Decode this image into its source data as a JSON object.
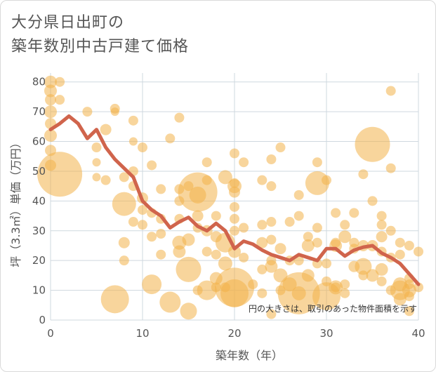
{
  "chart_data": {
    "type": "scatter",
    "title_lines": [
      "大分県日出町の",
      "築年数別中古戸建て価格"
    ],
    "xlabel": "築年数（年）",
    "ylabel": "坪（3.3㎡）単価（万円）",
    "xlim": [
      0,
      40
    ],
    "ylim": [
      0,
      83
    ],
    "xticks": [
      0,
      10,
      20,
      30,
      40
    ],
    "yticks": [
      0,
      10,
      20,
      30,
      40,
      50,
      60,
      70,
      80
    ],
    "note": "円の大きさは、取引のあった物件面積を示す",
    "colors": {
      "bubble": "#f2b24a",
      "line": "#d0644c",
      "grid": "#cfd8df",
      "text": "#555555"
    },
    "average_line": {
      "x": [
        0,
        1,
        2,
        3,
        4,
        5,
        6,
        7,
        8,
        9,
        10,
        11,
        12,
        13,
        14,
        15,
        16,
        17,
        18,
        19,
        20,
        21,
        22,
        23,
        24,
        25,
        26,
        27,
        28,
        29,
        30,
        31,
        32,
        33,
        34,
        35,
        36,
        37,
        38,
        39,
        40
      ],
      "y": [
        64,
        66,
        68.5,
        66,
        61,
        64,
        58,
        54,
        51,
        48,
        40,
        37,
        35,
        31,
        33,
        34.5,
        31.5,
        30,
        32.5,
        30,
        24,
        26.5,
        25.5,
        23.5,
        22,
        21,
        20,
        22,
        21,
        20,
        24,
        24,
        21.5,
        23.5,
        24.5,
        25,
        22.5,
        21,
        19,
        15.5,
        12
      ]
    },
    "points": [
      {
        "x": 0,
        "y": 80,
        "s": 9
      },
      {
        "x": 0,
        "y": 77,
        "s": 9
      },
      {
        "x": 0,
        "y": 74,
        "s": 8
      },
      {
        "x": 0,
        "y": 70,
        "s": 9
      },
      {
        "x": 0,
        "y": 66,
        "s": 8
      },
      {
        "x": 0,
        "y": 62,
        "s": 9
      },
      {
        "x": 0,
        "y": 57,
        "s": 8
      },
      {
        "x": 0,
        "y": 52,
        "s": 8
      },
      {
        "x": 1,
        "y": 80,
        "s": 7
      },
      {
        "x": 1,
        "y": 74,
        "s": 7
      },
      {
        "x": 1,
        "y": 49,
        "s": 32
      },
      {
        "x": 4,
        "y": 70,
        "s": 7
      },
      {
        "x": 5,
        "y": 58,
        "s": 7
      },
      {
        "x": 5,
        "y": 53,
        "s": 6
      },
      {
        "x": 5,
        "y": 48,
        "s": 6
      },
      {
        "x": 6,
        "y": 64,
        "s": 8
      },
      {
        "x": 6,
        "y": 47,
        "s": 7
      },
      {
        "x": 7,
        "y": 71,
        "s": 7
      },
      {
        "x": 7,
        "y": 70,
        "s": 6
      },
      {
        "x": 7,
        "y": 7,
        "s": 20
      },
      {
        "x": 8,
        "y": 48,
        "s": 7
      },
      {
        "x": 8,
        "y": 39,
        "s": 17
      },
      {
        "x": 8,
        "y": 26,
        "s": 8
      },
      {
        "x": 8,
        "y": 20,
        "s": 7
      },
      {
        "x": 9,
        "y": 67,
        "s": 7
      },
      {
        "x": 9,
        "y": 60,
        "s": 6
      },
      {
        "x": 9,
        "y": 50,
        "s": 7
      },
      {
        "x": 9,
        "y": 45,
        "s": 7
      },
      {
        "x": 9,
        "y": 33,
        "s": 7
      },
      {
        "x": 10,
        "y": 58,
        "s": 7
      },
      {
        "x": 10,
        "y": 41,
        "s": 8
      },
      {
        "x": 10,
        "y": 37,
        "s": 7
      },
      {
        "x": 10,
        "y": 32,
        "s": 7
      },
      {
        "x": 11,
        "y": 52,
        "s": 7
      },
      {
        "x": 11,
        "y": 36,
        "s": 7
      },
      {
        "x": 11,
        "y": 28,
        "s": 7
      },
      {
        "x": 11,
        "y": 12,
        "s": 14
      },
      {
        "x": 12,
        "y": 44,
        "s": 7
      },
      {
        "x": 12,
        "y": 34,
        "s": 7
      },
      {
        "x": 12,
        "y": 29,
        "s": 7
      },
      {
        "x": 12,
        "y": 22,
        "s": 7
      },
      {
        "x": 13,
        "y": 61,
        "s": 7
      },
      {
        "x": 13,
        "y": 6,
        "s": 15
      },
      {
        "x": 14,
        "y": 68,
        "s": 7
      },
      {
        "x": 14,
        "y": 44,
        "s": 7
      },
      {
        "x": 14,
        "y": 40,
        "s": 7
      },
      {
        "x": 14,
        "y": 34,
        "s": 7
      },
      {
        "x": 14,
        "y": 26,
        "s": 10
      },
      {
        "x": 14,
        "y": 23,
        "s": 9
      },
      {
        "x": 15,
        "y": 45,
        "s": 7
      },
      {
        "x": 15,
        "y": 27,
        "s": 9
      },
      {
        "x": 15,
        "y": 17,
        "s": 18
      },
      {
        "x": 15,
        "y": 3,
        "s": 12
      },
      {
        "x": 16,
        "y": 43,
        "s": 28
      },
      {
        "x": 16,
        "y": 42,
        "s": 12
      },
      {
        "x": 16,
        "y": 35,
        "s": 8
      },
      {
        "x": 16,
        "y": 31,
        "s": 7
      },
      {
        "x": 16,
        "y": 10,
        "s": 7
      },
      {
        "x": 17,
        "y": 53,
        "s": 7
      },
      {
        "x": 17,
        "y": 47,
        "s": 7
      },
      {
        "x": 17,
        "y": 30,
        "s": 8
      },
      {
        "x": 17,
        "y": 23,
        "s": 7
      },
      {
        "x": 17,
        "y": 10,
        "s": 14
      },
      {
        "x": 18,
        "y": 35,
        "s": 7
      },
      {
        "x": 18,
        "y": 28,
        "s": 8
      },
      {
        "x": 18,
        "y": 22,
        "s": 7
      },
      {
        "x": 18,
        "y": 14,
        "s": 9
      },
      {
        "x": 18,
        "y": 11,
        "s": 7
      },
      {
        "x": 19,
        "y": 48,
        "s": 10
      },
      {
        "x": 19,
        "y": 26,
        "s": 14
      },
      {
        "x": 19,
        "y": 19,
        "s": 10
      },
      {
        "x": 19,
        "y": 11,
        "s": 7
      },
      {
        "x": 20,
        "y": 56,
        "s": 7
      },
      {
        "x": 20,
        "y": 46,
        "s": 7
      },
      {
        "x": 20,
        "y": 45,
        "s": 10
      },
      {
        "x": 20,
        "y": 43,
        "s": 8
      },
      {
        "x": 20,
        "y": 38,
        "s": 7
      },
      {
        "x": 20,
        "y": 34,
        "s": 7
      },
      {
        "x": 20,
        "y": 30,
        "s": 7
      },
      {
        "x": 20,
        "y": 23,
        "s": 9
      },
      {
        "x": 20,
        "y": 11,
        "s": 28
      },
      {
        "x": 20,
        "y": 9,
        "s": 20
      },
      {
        "x": 21,
        "y": 53,
        "s": 7
      },
      {
        "x": 21,
        "y": 31,
        "s": 7
      },
      {
        "x": 21,
        "y": 21,
        "s": 7
      },
      {
        "x": 22,
        "y": 12,
        "s": 7
      },
      {
        "x": 23,
        "y": 47,
        "s": 7
      },
      {
        "x": 23,
        "y": 32,
        "s": 7
      },
      {
        "x": 23,
        "y": 26,
        "s": 8
      },
      {
        "x": 23,
        "y": 17,
        "s": 7
      },
      {
        "x": 23,
        "y": 9,
        "s": 7
      },
      {
        "x": 24,
        "y": 54,
        "s": 7
      },
      {
        "x": 24,
        "y": 45,
        "s": 7
      },
      {
        "x": 24,
        "y": 33,
        "s": 7
      },
      {
        "x": 24,
        "y": 27,
        "s": 7
      },
      {
        "x": 24,
        "y": 20,
        "s": 7
      },
      {
        "x": 24,
        "y": 18,
        "s": 9
      },
      {
        "x": 24,
        "y": 2,
        "s": 7
      },
      {
        "x": 25,
        "y": 58,
        "s": 7
      },
      {
        "x": 25,
        "y": 24,
        "s": 8
      },
      {
        "x": 25,
        "y": 15,
        "s": 10
      },
      {
        "x": 25,
        "y": 10,
        "s": 7
      },
      {
        "x": 26,
        "y": 33,
        "s": 7
      },
      {
        "x": 26,
        "y": 20,
        "s": 7
      },
      {
        "x": 26,
        "y": 12,
        "s": 10
      },
      {
        "x": 27,
        "y": 42,
        "s": 7
      },
      {
        "x": 27,
        "y": 35,
        "s": 7
      },
      {
        "x": 27,
        "y": 20,
        "s": 7
      },
      {
        "x": 27,
        "y": 9,
        "s": 10
      },
      {
        "x": 27,
        "y": 9,
        "s": 30
      },
      {
        "x": 28,
        "y": 28,
        "s": 7
      },
      {
        "x": 28,
        "y": 25,
        "s": 9
      },
      {
        "x": 28,
        "y": 15,
        "s": 9
      },
      {
        "x": 29,
        "y": 53,
        "s": 7
      },
      {
        "x": 29,
        "y": 46,
        "s": 17
      },
      {
        "x": 29,
        "y": 31,
        "s": 7
      },
      {
        "x": 29,
        "y": 26,
        "s": 7
      },
      {
        "x": 29,
        "y": 19,
        "s": 7
      },
      {
        "x": 30,
        "y": 47,
        "s": 7
      },
      {
        "x": 30,
        "y": 19,
        "s": 7
      },
      {
        "x": 30,
        "y": 13,
        "s": 7
      },
      {
        "x": 30,
        "y": 8,
        "s": 20
      },
      {
        "x": 31,
        "y": 36,
        "s": 7
      },
      {
        "x": 31,
        "y": 26,
        "s": 7
      },
      {
        "x": 31,
        "y": 25,
        "s": 9
      },
      {
        "x": 31,
        "y": 11,
        "s": 7
      },
      {
        "x": 31,
        "y": 11,
        "s": 10
      },
      {
        "x": 32,
        "y": 32,
        "s": 7
      },
      {
        "x": 32,
        "y": 28,
        "s": 9
      },
      {
        "x": 32,
        "y": 12,
        "s": 7
      },
      {
        "x": 32,
        "y": 9,
        "s": 7
      },
      {
        "x": 33,
        "y": 36,
        "s": 7
      },
      {
        "x": 33,
        "y": 26,
        "s": 7
      },
      {
        "x": 33,
        "y": 24,
        "s": 7
      },
      {
        "x": 33,
        "y": 18,
        "s": 8
      },
      {
        "x": 34,
        "y": 49,
        "s": 7
      },
      {
        "x": 34,
        "y": 25,
        "s": 8
      },
      {
        "x": 34,
        "y": 18,
        "s": 12
      },
      {
        "x": 34,
        "y": 15,
        "s": 7
      },
      {
        "x": 35,
        "y": 59,
        "s": 25
      },
      {
        "x": 35,
        "y": 40,
        "s": 7
      },
      {
        "x": 35,
        "y": 25,
        "s": 8
      },
      {
        "x": 35,
        "y": 15,
        "s": 9
      },
      {
        "x": 36,
        "y": 35,
        "s": 7
      },
      {
        "x": 36,
        "y": 32,
        "s": 7
      },
      {
        "x": 36,
        "y": 28,
        "s": 8
      },
      {
        "x": 36,
        "y": 23,
        "s": 7
      },
      {
        "x": 36,
        "y": 17,
        "s": 9
      },
      {
        "x": 36,
        "y": 13,
        "s": 7
      },
      {
        "x": 37,
        "y": 77,
        "s": 7
      },
      {
        "x": 37,
        "y": 51,
        "s": 7
      },
      {
        "x": 37,
        "y": 30,
        "s": 7
      },
      {
        "x": 37,
        "y": 21,
        "s": 7
      },
      {
        "x": 37,
        "y": 10,
        "s": 7
      },
      {
        "x": 38,
        "y": 26,
        "s": 7
      },
      {
        "x": 38,
        "y": 22,
        "s": 7
      },
      {
        "x": 38,
        "y": 12,
        "s": 10
      },
      {
        "x": 38,
        "y": 10,
        "s": 14
      },
      {
        "x": 38,
        "y": 7,
        "s": 9
      },
      {
        "x": 39,
        "y": 25,
        "s": 7
      },
      {
        "x": 39,
        "y": 14,
        "s": 7
      },
      {
        "x": 39,
        "y": 12,
        "s": 7
      },
      {
        "x": 39,
        "y": 10,
        "s": 10
      },
      {
        "x": 39,
        "y": 8,
        "s": 7
      },
      {
        "x": 39,
        "y": 3,
        "s": 7
      },
      {
        "x": 40,
        "y": 23,
        "s": 7
      },
      {
        "x": 40,
        "y": 11,
        "s": 7
      }
    ]
  }
}
